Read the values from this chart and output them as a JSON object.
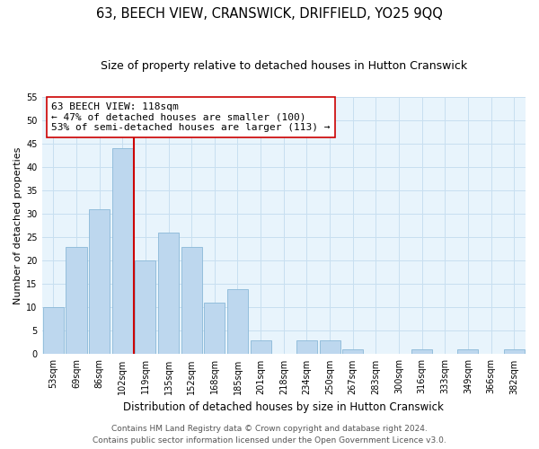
{
  "title": "63, BEECH VIEW, CRANSWICK, DRIFFIELD, YO25 9QQ",
  "subtitle": "Size of property relative to detached houses in Hutton Cranswick",
  "xlabel": "Distribution of detached houses by size in Hutton Cranswick",
  "ylabel": "Number of detached properties",
  "categories": [
    "53sqm",
    "69sqm",
    "86sqm",
    "102sqm",
    "119sqm",
    "135sqm",
    "152sqm",
    "168sqm",
    "185sqm",
    "201sqm",
    "218sqm",
    "234sqm",
    "250sqm",
    "267sqm",
    "283sqm",
    "300sqm",
    "316sqm",
    "333sqm",
    "349sqm",
    "366sqm",
    "382sqm"
  ],
  "values": [
    10,
    23,
    31,
    44,
    20,
    26,
    23,
    11,
    14,
    3,
    0,
    3,
    3,
    1,
    0,
    0,
    1,
    0,
    1,
    0,
    1
  ],
  "bar_color": "#bdd7ee",
  "bar_edge_color": "#8ab8d8",
  "vline_x": 3.5,
  "vline_color": "#cc0000",
  "annotation_line1": "63 BEECH VIEW: 118sqm",
  "annotation_line2": "← 47% of detached houses are smaller (100)",
  "annotation_line3": "53% of semi-detached houses are larger (113) →",
  "annotation_box_color": "white",
  "annotation_box_edge": "#cc0000",
  "ylim": [
    0,
    55
  ],
  "yticks": [
    0,
    5,
    10,
    15,
    20,
    25,
    30,
    35,
    40,
    45,
    50,
    55
  ],
  "grid_color": "#c8dff0",
  "bg_color": "#e8f4fc",
  "footer1": "Contains HM Land Registry data © Crown copyright and database right 2024.",
  "footer2": "Contains public sector information licensed under the Open Government Licence v3.0.",
  "title_fontsize": 10.5,
  "subtitle_fontsize": 9,
  "xlabel_fontsize": 8.5,
  "ylabel_fontsize": 8,
  "tick_fontsize": 7,
  "annotation_fontsize": 8,
  "footer_fontsize": 6.5
}
